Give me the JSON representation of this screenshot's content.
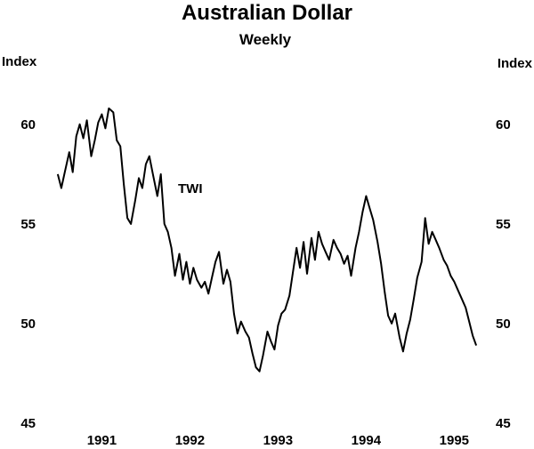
{
  "chart_data": {
    "type": "line",
    "title": "Australian Dollar",
    "subtitle": "Weekly",
    "ylabel_left": "Index",
    "ylabel_right": "Index",
    "ylim": [
      45,
      62
    ],
    "yticks": [
      45,
      50,
      55,
      60
    ],
    "xlim": [
      1990.9,
      1995.85
    ],
    "xticks": [
      {
        "label": "1991",
        "value": 1991.5
      },
      {
        "label": "1992",
        "value": 1992.5
      },
      {
        "label": "1993",
        "value": 1993.5
      },
      {
        "label": "1994",
        "value": 1994.5
      },
      {
        "label": "1995",
        "value": 1995.5
      }
    ],
    "grid": false,
    "series": [
      {
        "name": "TWI",
        "color": "#000000",
        "x": [
          1991.0,
          1991.04,
          1991.08,
          1991.13,
          1991.17,
          1991.21,
          1991.25,
          1991.29,
          1991.33,
          1991.38,
          1991.42,
          1991.46,
          1991.5,
          1991.54,
          1991.58,
          1991.63,
          1991.67,
          1991.71,
          1991.75,
          1991.79,
          1991.83,
          1991.88,
          1991.92,
          1991.96,
          1992.0,
          1992.04,
          1992.08,
          1992.13,
          1992.17,
          1992.21,
          1992.25,
          1992.29,
          1992.33,
          1992.38,
          1992.42,
          1992.46,
          1992.5,
          1992.54,
          1992.58,
          1992.63,
          1992.67,
          1992.71,
          1992.75,
          1992.79,
          1992.83,
          1992.88,
          1992.92,
          1992.96,
          1993.0,
          1993.04,
          1993.08,
          1993.13,
          1993.17,
          1993.21,
          1993.25,
          1993.29,
          1993.33,
          1993.38,
          1993.42,
          1993.46,
          1993.5,
          1993.54,
          1993.58,
          1993.63,
          1993.67,
          1993.71,
          1993.75,
          1993.79,
          1993.83,
          1993.88,
          1993.92,
          1993.96,
          1994.0,
          1994.04,
          1994.08,
          1994.13,
          1994.17,
          1994.21,
          1994.25,
          1994.29,
          1994.33,
          1994.38,
          1994.42,
          1994.46,
          1994.5,
          1994.54,
          1994.58,
          1994.63,
          1994.67,
          1994.71,
          1994.75,
          1994.79,
          1994.83,
          1994.88,
          1994.92,
          1994.96,
          1995.0,
          1995.04,
          1995.08,
          1995.13,
          1995.17,
          1995.21,
          1995.25,
          1995.29,
          1995.33,
          1995.38,
          1995.42,
          1995.46,
          1995.5,
          1995.54,
          1995.58,
          1995.63,
          1995.67,
          1995.71,
          1995.75
        ],
        "values": [
          57.5,
          56.8,
          57.6,
          58.6,
          57.6,
          59.4,
          60.0,
          59.3,
          60.2,
          58.4,
          59.2,
          60.1,
          60.5,
          59.8,
          60.8,
          60.6,
          59.2,
          58.9,
          57.0,
          55.3,
          55.0,
          56.2,
          57.3,
          56.8,
          58.0,
          58.4,
          57.5,
          56.4,
          57.5,
          55.0,
          54.6,
          53.8,
          52.4,
          53.5,
          52.2,
          53.1,
          52.0,
          52.8,
          52.2,
          51.8,
          52.1,
          51.5,
          52.3,
          53.1,
          53.6,
          52.0,
          52.7,
          52.1,
          50.5,
          49.5,
          50.1,
          49.6,
          49.3,
          48.5,
          47.8,
          47.6,
          48.4,
          49.6,
          49.1,
          48.7,
          49.9,
          50.5,
          50.7,
          51.4,
          52.6,
          53.8,
          52.8,
          54.1,
          52.5,
          54.3,
          53.2,
          54.6,
          54.0,
          53.6,
          53.2,
          54.2,
          53.8,
          53.5,
          53.0,
          53.4,
          52.4,
          53.8,
          54.6,
          55.6,
          56.4,
          55.8,
          55.2,
          54.1,
          53.0,
          51.6,
          50.4,
          50.0,
          50.5,
          49.3,
          48.6,
          49.5,
          50.2,
          51.2,
          52.3,
          53.1,
          55.3,
          54.0,
          54.6,
          54.2,
          53.8,
          53.2,
          52.9,
          52.4,
          52.1,
          51.7,
          51.3,
          50.8,
          50.1,
          49.4,
          48.9
        ]
      }
    ],
    "series_label": "TWI"
  }
}
